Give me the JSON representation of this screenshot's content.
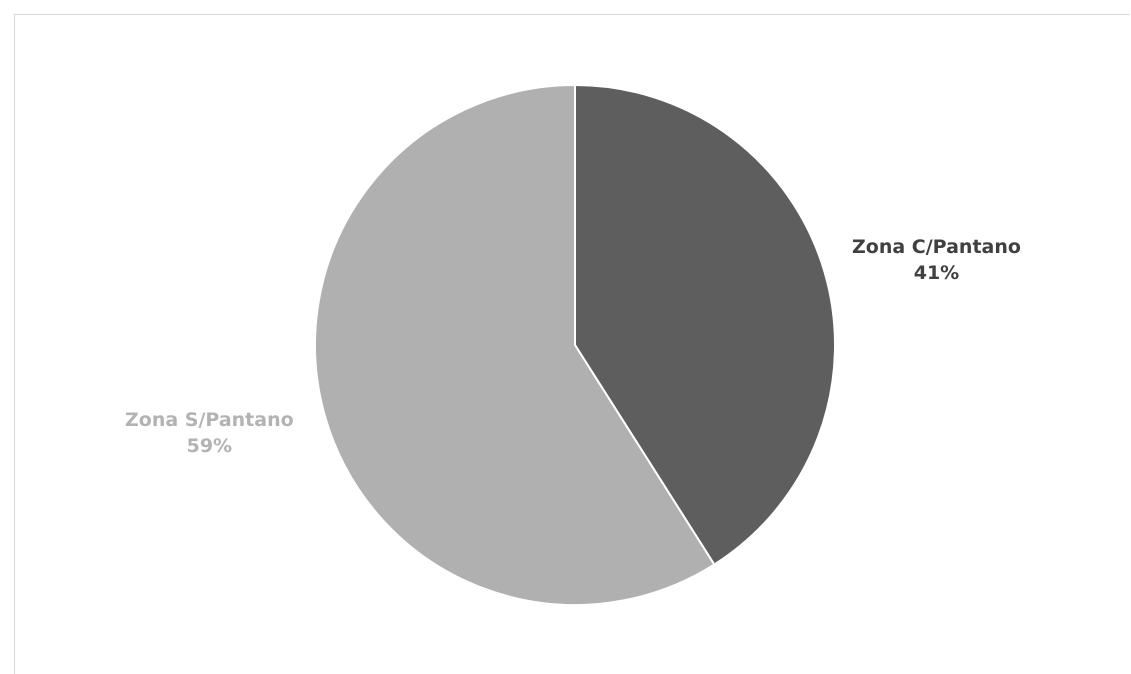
{
  "chart_data": {
    "type": "pie",
    "title": "",
    "slices": [
      {
        "name": "Zona C/Pantano",
        "value": 41,
        "label": "41%",
        "color": "#5e5e5e",
        "label_color": "#404040"
      },
      {
        "name": "Zona S/Pantano",
        "value": 59,
        "label": "59%",
        "color": "#b0b0b0",
        "label_color": "#b3b3b3"
      }
    ],
    "start_angle_deg": 0,
    "direction": "clockwise",
    "legend": "none",
    "data_labels": "outside"
  }
}
